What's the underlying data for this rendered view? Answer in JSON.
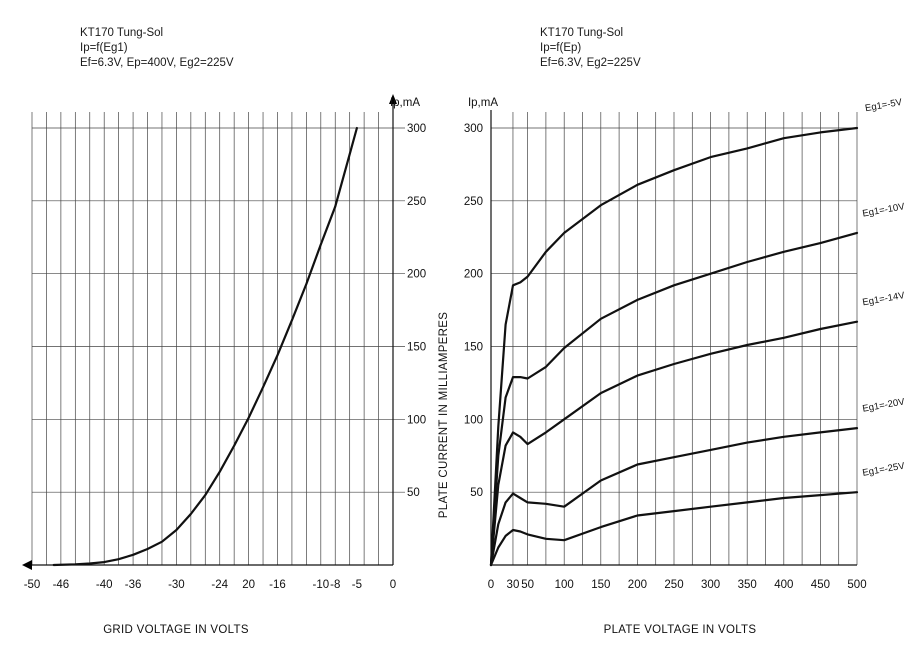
{
  "chart_data": [
    {
      "type": "line",
      "title": [
        "KT170 Tung-Sol",
        "Ip=f(Eg1)",
        "Ef=6.3V, Ep=400V, Eg2=225V"
      ],
      "xlabel": "GRID VOLTAGE IN  VOLTS",
      "ylabel": "Ip,mA",
      "xlim": [
        -50,
        0
      ],
      "ylim": [
        0,
        300
      ],
      "x_ticks": [
        "-50",
        "-46",
        "-40",
        "-36",
        "-30",
        "-24",
        "20",
        "-16",
        "-10",
        "-8",
        "-5",
        "0"
      ],
      "y_ticks": [
        "50",
        "100",
        "150",
        "200",
        "250",
        "300"
      ],
      "grid": true,
      "series": [
        {
          "x": [
            -47,
            -44,
            -42,
            -40,
            -38,
            -36,
            -34,
            -32,
            -30,
            -28,
            -26,
            -24,
            -22,
            -20,
            -18,
            -16,
            -14,
            -12,
            -10,
            -8,
            -6,
            -5
          ],
          "values": [
            0,
            0.5,
            1,
            2,
            4,
            7,
            11,
            16,
            24,
            35,
            48,
            64,
            82,
            101,
            122,
            144,
            168,
            193,
            220,
            246,
            282,
            300
          ]
        }
      ]
    },
    {
      "type": "line",
      "title": [
        "KT170 Tung-Sol",
        "Ip=f(Ep)",
        "Ef=6.3V, Eg2=225V"
      ],
      "xlabel": "PLATE VOLTAGE IN  VOLTS",
      "ylabel": "PLATE CURRENT IN  MILLIAMPERES",
      "y_unit_label": "Ip,mA",
      "xlim": [
        0,
        500
      ],
      "ylim": [
        0,
        300
      ],
      "x_ticks": [
        "0",
        "30",
        "50",
        "100",
        "150",
        "200",
        "250",
        "300",
        "350",
        "400",
        "450",
        "500"
      ],
      "y_ticks": [
        "50",
        "100",
        "150",
        "200",
        "250",
        "300"
      ],
      "grid": true,
      "series": [
        {
          "name": "Eg1=-5V",
          "x": [
            0,
            10,
            20,
            30,
            40,
            50,
            75,
            100,
            150,
            200,
            250,
            300,
            350,
            400,
            450,
            500
          ],
          "values": [
            0,
            95,
            165,
            192,
            194,
            198,
            215,
            228,
            247,
            261,
            271,
            280,
            286,
            293,
            297,
            300
          ]
        },
        {
          "name": "Eg1=-10V",
          "x": [
            0,
            10,
            20,
            30,
            40,
            50,
            75,
            100,
            150,
            200,
            250,
            300,
            350,
            400,
            450,
            500
          ],
          "values": [
            0,
            75,
            115,
            129,
            129,
            128,
            136,
            149,
            169,
            182,
            192,
            200,
            208,
            215,
            221,
            228
          ]
        },
        {
          "name": "Eg1=-14V",
          "x": [
            0,
            10,
            20,
            30,
            40,
            50,
            75,
            100,
            150,
            200,
            250,
            300,
            350,
            400,
            450,
            500
          ],
          "values": [
            0,
            55,
            82,
            91,
            88,
            83,
            91,
            100,
            118,
            130,
            138,
            145,
            151,
            156,
            162,
            167
          ]
        },
        {
          "name": "Eg1=-20V",
          "x": [
            0,
            10,
            20,
            30,
            40,
            50,
            75,
            100,
            150,
            200,
            250,
            300,
            350,
            400,
            450,
            500
          ],
          "values": [
            0,
            28,
            43,
            49,
            46,
            43,
            42,
            40,
            58,
            69,
            74,
            79,
            84,
            88,
            91,
            94
          ]
        },
        {
          "name": "Eg1=-25V",
          "x": [
            0,
            10,
            20,
            30,
            40,
            50,
            75,
            100,
            150,
            200,
            250,
            300,
            350,
            400,
            450,
            500
          ],
          "values": [
            0,
            12,
            20,
            24,
            23,
            21,
            18,
            17,
            26,
            34,
            37,
            40,
            43,
            46,
            48,
            50
          ]
        }
      ]
    }
  ]
}
